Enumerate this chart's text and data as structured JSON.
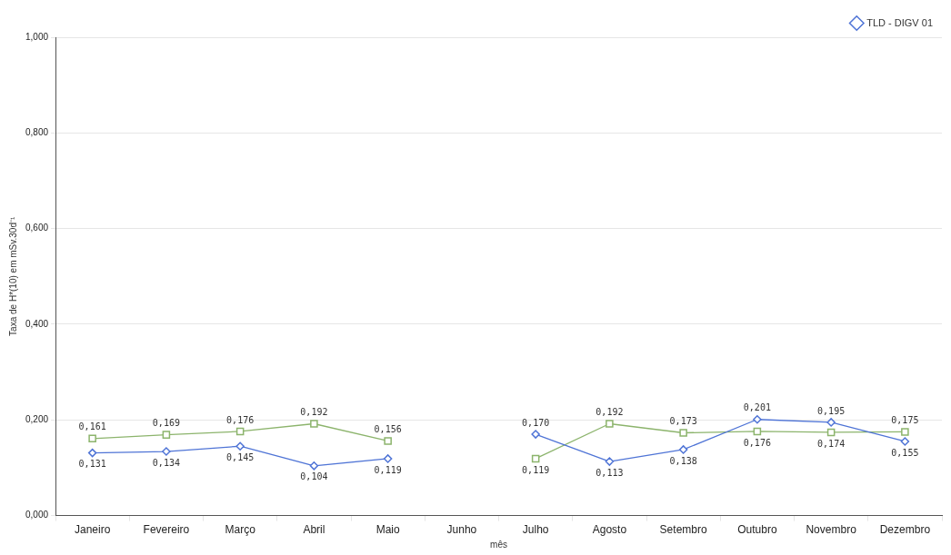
{
  "chart_data": {
    "type": "line",
    "xlabel": "mês",
    "ylabel": "Taxa de H*(10) em mSv.30d⁻¹",
    "categories": [
      "Janeiro",
      "Fevereiro",
      "Março",
      "Abril",
      "Maio",
      "Junho",
      "Julho",
      "Agosto",
      "Setembro",
      "Outubro",
      "Novembro",
      "Dezembro"
    ],
    "series": [
      {
        "name": "TLD - DIGV 01",
        "color": "#4f74d6",
        "marker": "diamond",
        "values": [
          0.131,
          0.134,
          0.145,
          0.104,
          0.119,
          null,
          0.17,
          0.113,
          0.138,
          0.201,
          0.195,
          0.155
        ],
        "value_labels": [
          "0,131",
          "0,134",
          "0,145",
          "0,104",
          "0,119",
          null,
          "0,170",
          "0,113",
          "0,138",
          "0,201",
          "0,195",
          "0,155"
        ]
      },
      {
        "color": "#8cb46c",
        "marker": "square",
        "values": [
          0.161,
          0.169,
          0.176,
          0.192,
          0.156,
          null,
          0.119,
          0.192,
          0.173,
          0.176,
          0.174,
          0.175
        ],
        "value_labels": [
          "0,161",
          "0,169",
          "0,176",
          "0,192",
          "0,156",
          null,
          "0,119",
          "0,192",
          "0,173",
          "0,176",
          "0,174",
          "0,175"
        ]
      }
    ],
    "ylim": [
      0,
      1
    ],
    "yticks": [
      {
        "value": 0,
        "label": "0,000"
      },
      {
        "value": 0.2,
        "label": "0,200"
      },
      {
        "value": 0.4,
        "label": "0,400"
      },
      {
        "value": 0.6,
        "label": "0,600"
      },
      {
        "value": 0.8,
        "label": "0,800"
      },
      {
        "value": 1,
        "label": "1,000"
      }
    ],
    "grid": "y",
    "legend": "top right"
  }
}
